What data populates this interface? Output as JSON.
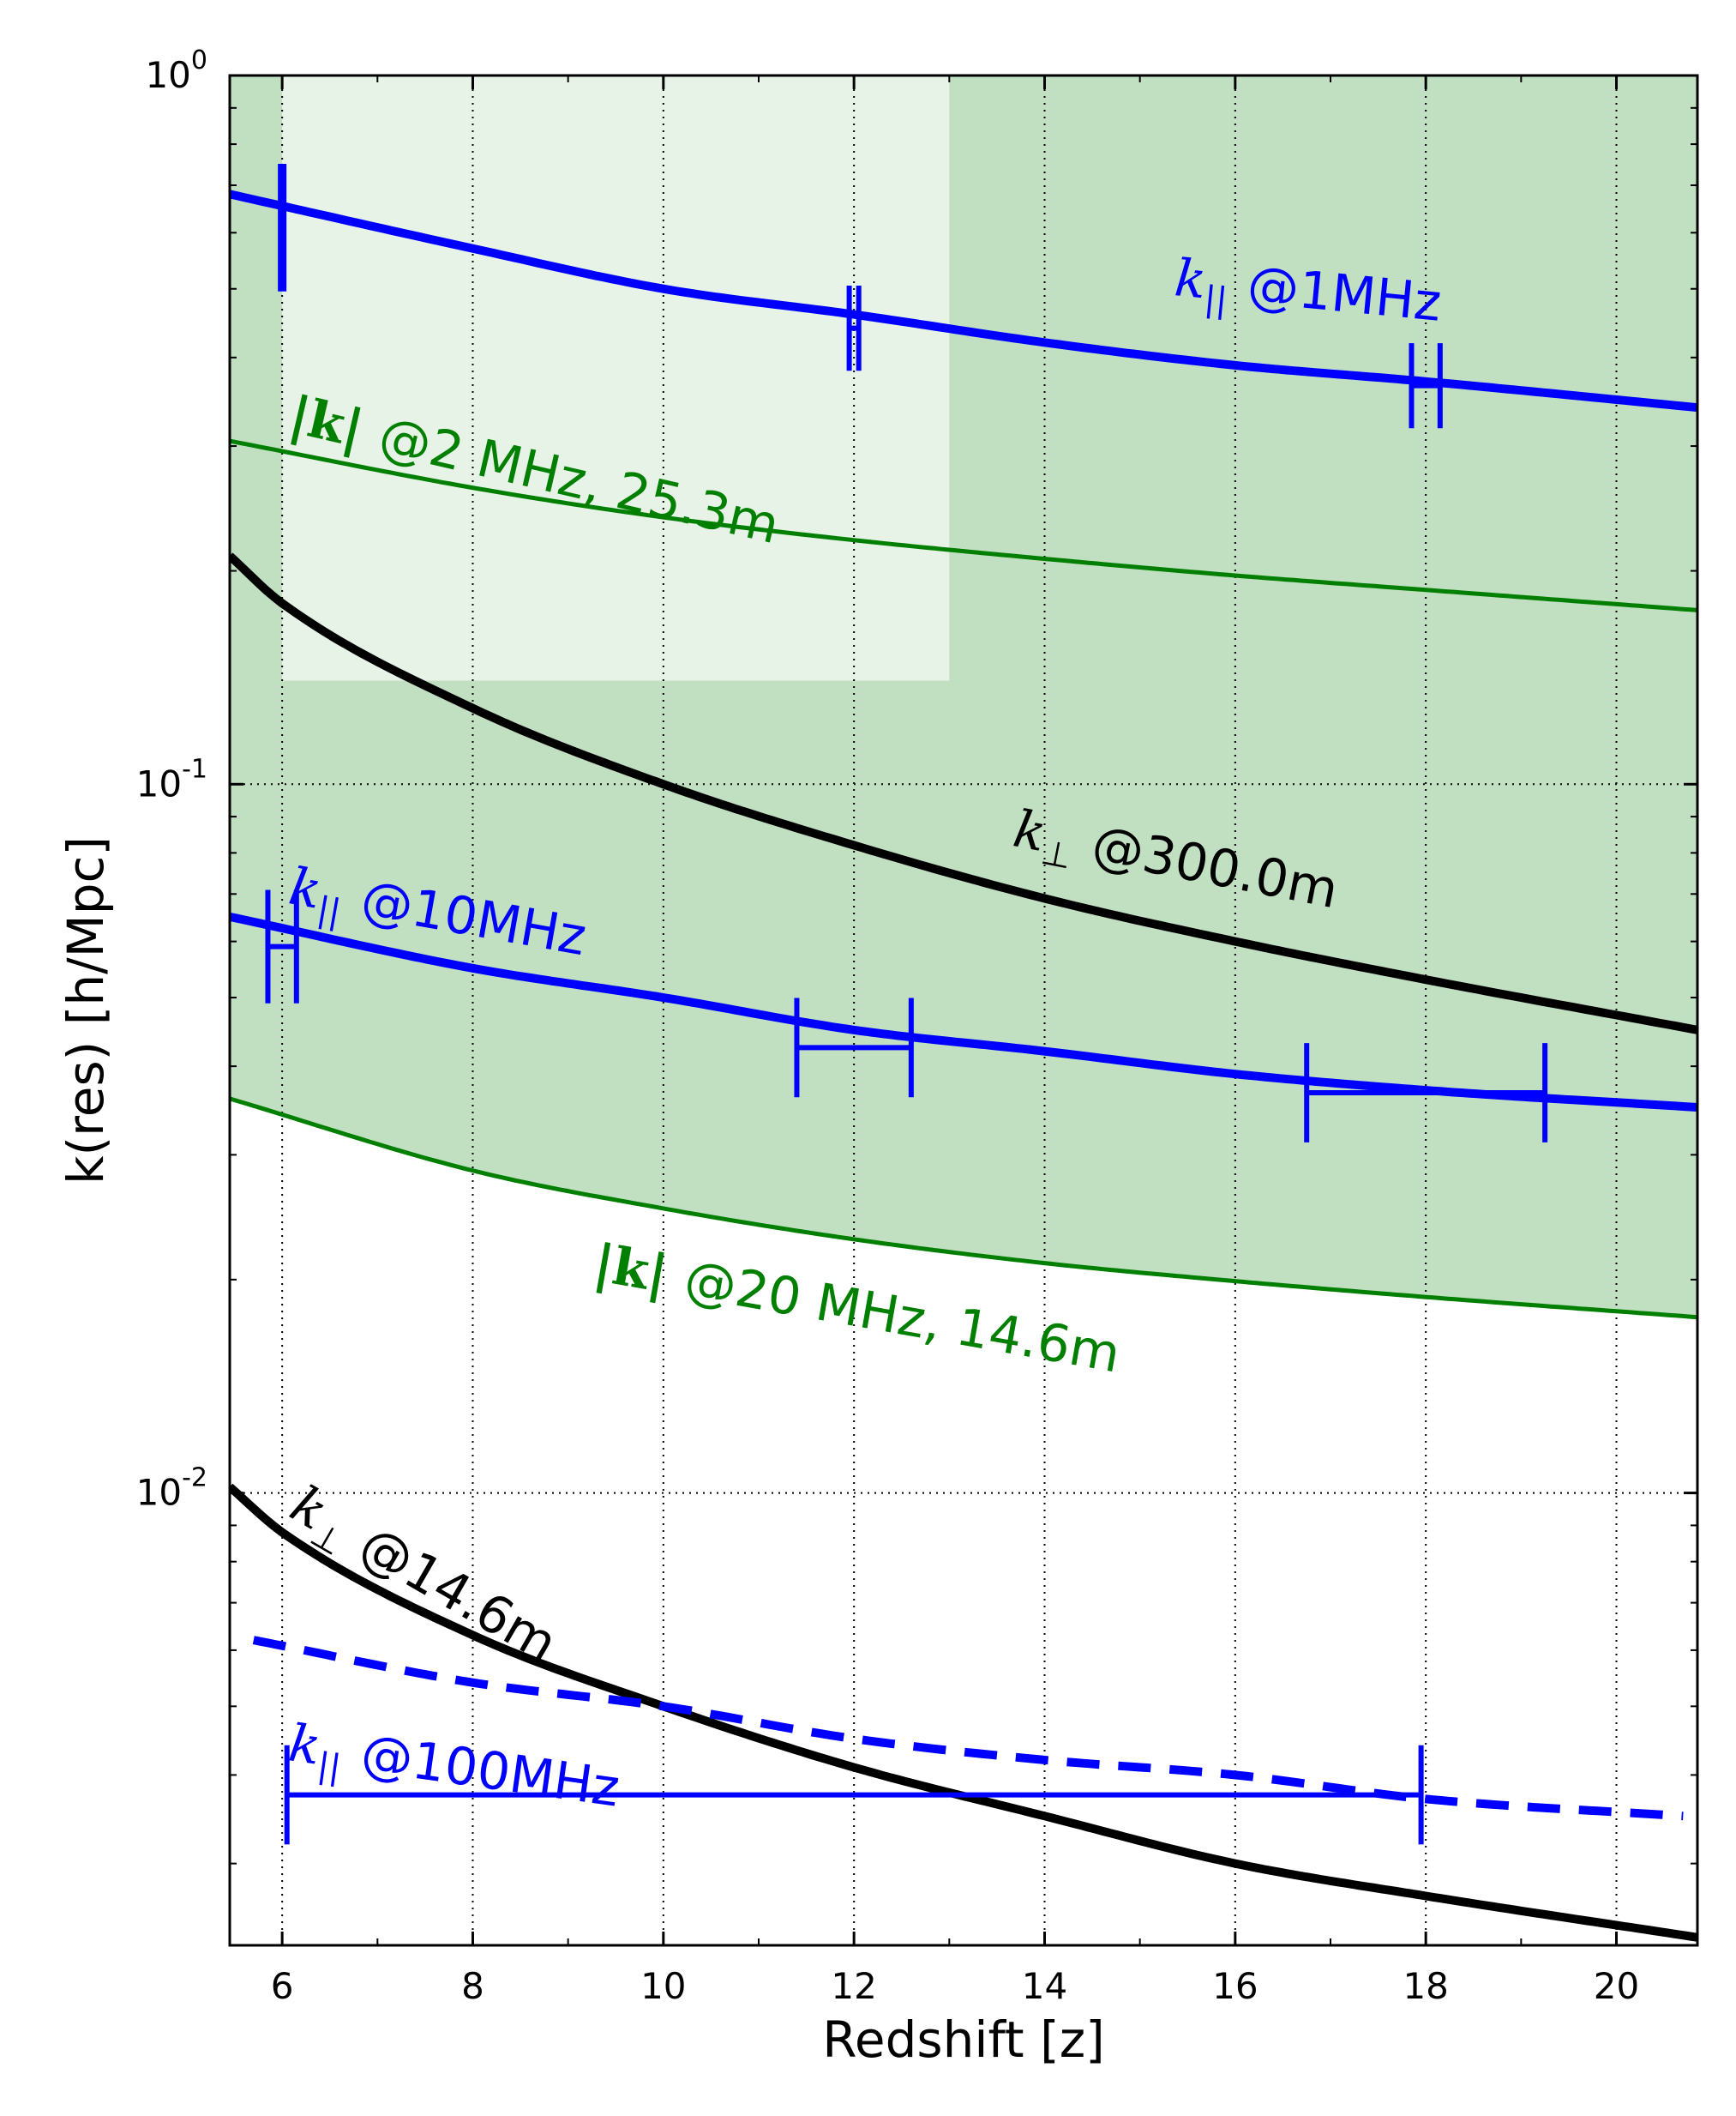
{
  "chart_data": {
    "type": "line",
    "title": "",
    "xlabel": "Redshift [z]",
    "ylabel": "k(res) [h/Mpc]",
    "xlim": [
      5.45,
      20.85
    ],
    "ylim": [
      0.0023,
      1.0
    ],
    "yscale": "log",
    "grid": true,
    "x_ticks": [
      6,
      8,
      10,
      12,
      14,
      16,
      18,
      20
    ],
    "y_ticks": [
      {
        "value": 0.01,
        "label": "10",
        "exp": "-2"
      },
      {
        "value": 0.1,
        "label": "10",
        "exp": "-1"
      },
      {
        "value": 1.0,
        "label": "10",
        "exp": "0"
      }
    ],
    "colors": {
      "blue": "#0000ff",
      "green": "#007f00",
      "black": "#000000",
      "band": "#c1e0c1",
      "inner_band": "#e6f3e6"
    },
    "shaded_band": {
      "lower_series": "|k| @20 MHz, 14.6m",
      "upper": 1.0
    },
    "inner_box": {
      "x": [
        6.0,
        13.0
      ],
      "y": [
        0.14,
        1.0
      ]
    },
    "series": [
      {
        "name": "k_|| @1MHz",
        "color": "#0000ff",
        "style": "solid",
        "width": "thick",
        "x": [
          5.45,
          8,
          10,
          12,
          14,
          16,
          18,
          20.85
        ],
        "y": [
          0.68,
          0.57,
          0.5,
          0.46,
          0.42,
          0.39,
          0.37,
          0.34
        ]
      },
      {
        "name": "|k| @2 MHz, 25.3m",
        "color": "#007f00",
        "style": "solid",
        "width": "medium",
        "x": [
          5.45,
          8,
          10,
          12,
          14,
          16,
          18,
          20.85
        ],
        "y": [
          0.305,
          0.262,
          0.238,
          0.221,
          0.208,
          0.197,
          0.188,
          0.176
        ]
      },
      {
        "name": "k_⊥ @300.0m",
        "color": "#000000",
        "style": "solid",
        "width": "thick",
        "x": [
          5.45,
          6,
          8,
          10,
          12,
          14,
          16,
          18,
          20.85
        ],
        "y": [
          0.21,
          0.18,
          0.128,
          0.1,
          0.082,
          0.069,
          0.06,
          0.053,
          0.045
        ]
      },
      {
        "name": "k_|| @10MHz",
        "color": "#0000ff",
        "style": "solid",
        "width": "thick",
        "x": [
          5.45,
          8,
          10,
          12,
          14,
          16,
          18,
          20.85
        ],
        "y": [
          0.065,
          0.055,
          0.05,
          0.045,
          0.042,
          0.039,
          0.037,
          0.035
        ]
      },
      {
        "name": "|k| @20 MHz, 14.6m",
        "color": "#007f00",
        "style": "solid",
        "width": "medium",
        "x": [
          5.45,
          8,
          10,
          12,
          14,
          16,
          18,
          20.85
        ],
        "y": [
          0.036,
          0.0285,
          0.0252,
          0.0228,
          0.0211,
          0.0199,
          0.0189,
          0.0177
        ]
      },
      {
        "name": "k_⊥ @14.6m",
        "color": "#000000",
        "style": "solid",
        "width": "thick",
        "x": [
          5.45,
          6,
          8,
          10,
          12,
          14,
          16,
          18,
          20.85
        ],
        "y": [
          0.0102,
          0.0088,
          0.0063,
          0.005,
          0.0041,
          0.0035,
          0.003,
          0.0027,
          0.00236
        ]
      },
      {
        "name": "k_|| @100MHz",
        "color": "#0000ff",
        "style": "dashed",
        "width": "thick",
        "x": [
          5.7,
          8,
          10,
          12,
          14,
          16,
          18,
          20.7
        ],
        "y": [
          0.0062,
          0.0054,
          0.005,
          0.0045,
          0.0042,
          0.004,
          0.0037,
          0.0035
        ]
      }
    ],
    "range_bars": [
      {
        "x_min": 6.0,
        "x_max": 6.0,
        "y": 0.61,
        "tick_half": 0.09,
        "color": "#0000ff",
        "width": 10
      },
      {
        "x_min": 11.95,
        "x_max": 12.05,
        "y": 0.44,
        "tick_half": 0.06,
        "color": "#0000ff",
        "width": 6
      },
      {
        "x_min": 17.85,
        "x_max": 18.15,
        "y": 0.365,
        "tick_half": 0.06,
        "color": "#0000ff",
        "width": 6
      },
      {
        "x_min": 5.85,
        "x_max": 6.15,
        "y": 0.059,
        "tick_half": 0.08,
        "color": "#0000ff",
        "width": 6
      },
      {
        "x_min": 11.4,
        "x_max": 12.6,
        "y": 0.0425,
        "tick_half": 0.07,
        "color": "#0000ff",
        "width": 6
      },
      {
        "x_min": 16.75,
        "x_max": 19.25,
        "y": 0.0367,
        "tick_half": 0.07,
        "color": "#0000ff",
        "width": 6
      },
      {
        "x_min": 6.05,
        "x_max": 17.95,
        "y": 0.00375,
        "tick_half": 0.07,
        "color": "#0000ff",
        "width": 6
      }
    ],
    "annotations": [
      {
        "id": "k-par-1mhz",
        "pre": "k",
        "sub": "||",
        "text": "@1MHz",
        "color": "#0000ff",
        "x": 15.35,
        "y": 0.49,
        "rotate": 5.5,
        "pre_style": "italic"
      },
      {
        "id": "k-abs-2mhz",
        "pre": "|k|",
        "sub": "",
        "text": "@2 MHz, 25.3m",
        "color": "#007f00",
        "x": 6.05,
        "y": 0.315,
        "rotate": 13,
        "pre_style": "bold"
      },
      {
        "id": "k-perp-300m",
        "pre": "k",
        "sub": "⊥",
        "text": "@300.0m",
        "color": "#000000",
        "x": 13.65,
        "y": 0.082,
        "rotate": 11,
        "pre_style": "italic"
      },
      {
        "id": "k-par-10mhz",
        "pre": "k",
        "sub": "||",
        "text": "@10MHz",
        "color": "#0000ff",
        "x": 6.05,
        "y": 0.068,
        "rotate": 10,
        "pre_style": "italic"
      },
      {
        "id": "k-abs-20mhz",
        "pre": "|k|",
        "sub": "",
        "text": "@20 MHz, 14.6m",
        "color": "#007f00",
        "x": 9.25,
        "y": 0.02,
        "rotate": 10,
        "pre_style": "bold"
      },
      {
        "id": "k-perp-14m",
        "pre": "k",
        "sub": "⊥",
        "text": "@14.6m",
        "color": "#000000",
        "x": 6.05,
        "y": 0.0093,
        "rotate": 30,
        "pre_style": "italic"
      },
      {
        "id": "k-par-100mhz",
        "pre": "k",
        "sub": "||",
        "text": "@100MHz",
        "color": "#0000ff",
        "x": 6.05,
        "y": 0.0042,
        "rotate": 8,
        "pre_style": "italic"
      }
    ]
  }
}
